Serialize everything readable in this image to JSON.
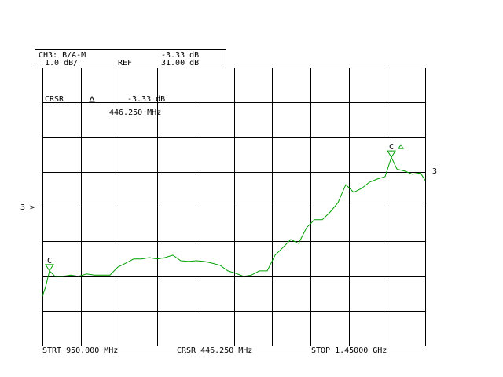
{
  "chart_data": {
    "type": "line",
    "header": {
      "channel": "CH3: B/A-M",
      "value": "-3.33 dB",
      "scale": "1.0 dB/",
      "ref_label": "REF"
    },
    "ref": {
      "value": 31,
      "label": "31.00 dB"
    },
    "cursor": {
      "label": "CRSR",
      "value": "-3.33 dB",
      "frequency": "446.250 MHz"
    },
    "footer": {
      "start": "STRT 950.000 MHz",
      "cursor": "CRSR 446.250 MHz",
      "stop": "STOP 1.45000 GHz"
    },
    "ref_marker": "3 >",
    "trace_label": "3",
    "xlim": [
      950,
      1450
    ],
    "ylim": [
      27,
      35
    ],
    "xticks": [
      950,
      1000,
      1050,
      1100,
      1150,
      1200,
      1250,
      1300,
      1350,
      1400,
      1450
    ],
    "yticks": [
      27,
      28,
      29,
      30,
      31,
      32,
      33,
      34,
      35
    ],
    "grid": true,
    "series": [
      {
        "color": "#00a000",
        "x": [
          950,
          954.1,
          959.2,
          966.4,
          976.7,
          987,
          997.2,
          1007.5,
          1017.8,
          1028,
          1038.3,
          1048.6,
          1058.8,
          1069.1,
          1079.4,
          1089.6,
          1099.9,
          1110.2,
          1120.4,
          1130.7,
          1141,
          1151.2,
          1161.5,
          1171.8,
          1182,
          1192.3,
          1202.6,
          1212.8,
          1223.1,
          1233.4,
          1243.6,
          1253.9,
          1264.2,
          1274.4,
          1284.7,
          1295,
          1305.2,
          1315.5,
          1325.8,
          1336,
          1346.3,
          1356.6,
          1366.8,
          1377.1,
          1387.4,
          1397.6,
          1405.9,
          1413,
          1423.3,
          1433.6,
          1443.8,
          1450
        ],
        "values": [
          28.42,
          28.69,
          29.15,
          28.99,
          28.99,
          29.03,
          28.99,
          29.06,
          29.03,
          29.03,
          29.03,
          29.26,
          29.37,
          29.49,
          29.49,
          29.53,
          29.49,
          29.53,
          29.6,
          29.44,
          29.42,
          29.44,
          29.42,
          29.37,
          29.31,
          29.15,
          29.08,
          28.99,
          29.03,
          29.15,
          29.15,
          29.6,
          29.82,
          30.05,
          29.94,
          30.39,
          30.62,
          30.62,
          30.84,
          31.11,
          31.63,
          31.41,
          31.52,
          31.7,
          31.79,
          31.86,
          32.42,
          32.08,
          32.02,
          31.93,
          31.97,
          31.75
        ]
      }
    ],
    "markers": [
      {
        "label": "C",
        "x": 959.2,
        "y": 29.15
      },
      {
        "label": "C",
        "x": 1405.9,
        "y": 32.42
      }
    ]
  }
}
